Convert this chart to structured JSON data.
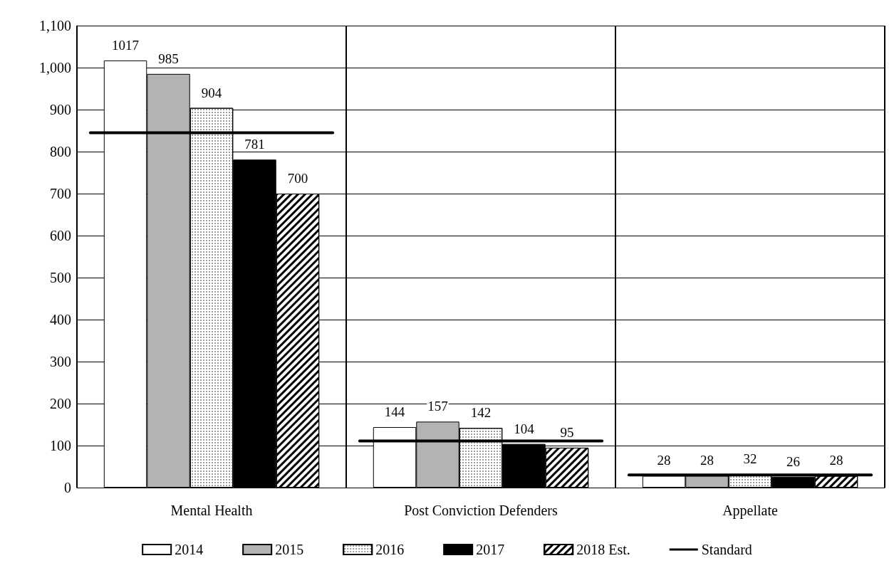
{
  "chart_data": {
    "type": "bar",
    "categories": [
      "Mental Health",
      "Post Conviction Defenders",
      "Appellate"
    ],
    "series": [
      {
        "name": "2014",
        "color": "#ffffff",
        "values": [
          1017,
          144,
          28
        ],
        "value_labels": [
          "1017",
          "144",
          "28"
        ]
      },
      {
        "name": "2015",
        "color": "#b3b3b3",
        "values": [
          985,
          157,
          28
        ],
        "value_labels": [
          "985",
          "157",
          "28"
        ]
      },
      {
        "name": "2016",
        "color": "#ffffff",
        "values": [
          904,
          142,
          32
        ],
        "value_labels": [
          "904",
          "142",
          "32"
        ]
      },
      {
        "name": "2017",
        "color": "#000000",
        "values": [
          781,
          104,
          26
        ],
        "value_labels": [
          "781",
          "104",
          "26"
        ]
      },
      {
        "name": "2018 Est.",
        "color": "#ffffff",
        "values": [
          700,
          95,
          28
        ],
        "value_labels": [
          "700",
          "95",
          "28"
        ]
      }
    ],
    "ref_lines": [
      {
        "axis": "y",
        "value": 845,
        "label": "Standard",
        "color": "#000000"
      },
      {
        "axis": "y",
        "value": 111,
        "color": "#000000"
      },
      {
        "axis": "y",
        "value": 30,
        "color": "#000000"
      }
    ],
    "ylim": [
      0,
      1100
    ],
    "yticks": [
      0,
      {
        "value": 100,
        "label": "100"
      },
      {
        "value": 200,
        "label": "200"
      },
      {
        "value": 300,
        "label": "300"
      },
      {
        "value": 400,
        "label": "400"
      },
      {
        "value": 500,
        "label": "500"
      },
      {
        "value": 600,
        "label": "600"
      },
      {
        "value": 700,
        "label": "700"
      },
      {
        "value": 800,
        "label": "800"
      },
      {
        "value": 900,
        "label": "900"
      },
      {
        "value": 1000,
        "label": "1,000"
      },
      {
        "value": 1100,
        "label": "1,100"
      }
    ],
    "grid": true,
    "legend": "bottom"
  }
}
